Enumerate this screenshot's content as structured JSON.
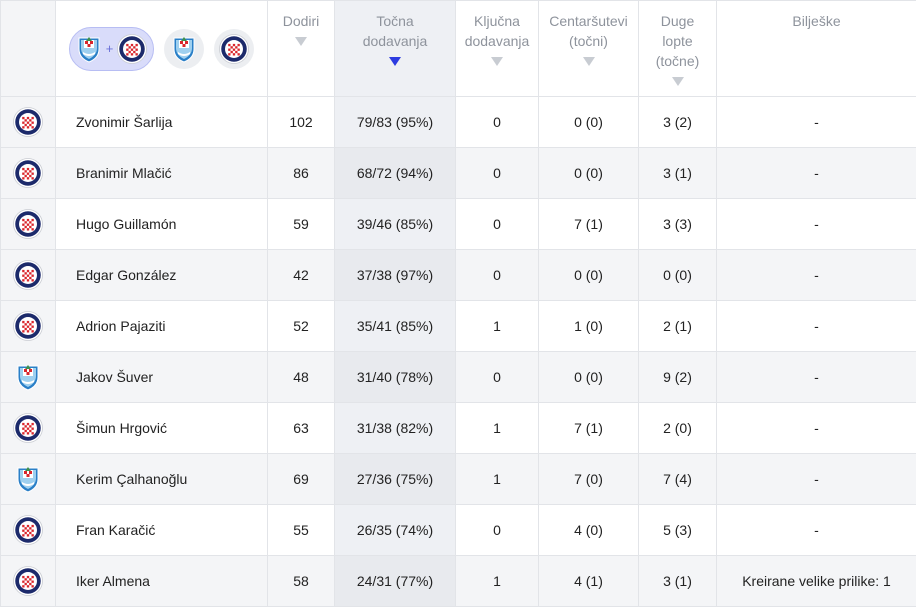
{
  "header": {
    "columns": [
      {
        "key": "touches",
        "label_lines": [
          "Dodiri"
        ]
      },
      {
        "key": "passes",
        "label_lines": [
          "Točna",
          "dodavanja"
        ]
      },
      {
        "key": "key_passes",
        "label_lines": [
          "Ključna",
          "dodavanja"
        ]
      },
      {
        "key": "crosses",
        "label_lines": [
          "Centaršutevi",
          "(točni)"
        ]
      },
      {
        "key": "long_balls",
        "label_lines": [
          "Duge",
          "lopte",
          "(točne)"
        ]
      },
      {
        "key": "notes",
        "label_lines": [
          "Bilješke"
        ]
      }
    ],
    "filter": {
      "combined_plus": "+",
      "options": [
        "both-teams",
        "team-green",
        "team-hajduk"
      ]
    }
  },
  "icons": {
    "sort": "sort-down-arrow-icon",
    "team_a": "hajduk-split-crest-icon",
    "team_b": "green-shield-crest-icon"
  },
  "colors": {
    "accent": "#2c3be0",
    "pill_bg": "#d9dcfa",
    "hajduk_red": "#d9262c",
    "hajduk_blue": "#1c2a6b",
    "green_team": "#3d8f4e",
    "green_team_blue": "#2a7fc7"
  },
  "players": [
    {
      "team": "hajduk",
      "name": "Zvonimir Šarlija",
      "touches": "102",
      "passes": "79/83 (95%)",
      "key_passes": "0",
      "crosses": "0 (0)",
      "long_balls": "3 (2)",
      "notes": "-"
    },
    {
      "team": "hajduk",
      "name": "Branimir Mlačić",
      "touches": "86",
      "passes": "68/72 (94%)",
      "key_passes": "0",
      "crosses": "0 (0)",
      "long_balls": "3 (1)",
      "notes": "-"
    },
    {
      "team": "hajduk",
      "name": "Hugo Guillamón",
      "touches": "59",
      "passes": "39/46 (85%)",
      "key_passes": "0",
      "crosses": "7 (1)",
      "long_balls": "3 (3)",
      "notes": "-"
    },
    {
      "team": "hajduk",
      "name": "Edgar González",
      "touches": "42",
      "passes": "37/38 (97%)",
      "key_passes": "0",
      "crosses": "0 (0)",
      "long_balls": "0 (0)",
      "notes": "-"
    },
    {
      "team": "hajduk",
      "name": "Adrion Pajaziti",
      "touches": "52",
      "passes": "35/41 (85%)",
      "key_passes": "1",
      "crosses": "1 (0)",
      "long_balls": "2 (1)",
      "notes": "-"
    },
    {
      "team": "green",
      "name": "Jakov Šuver",
      "touches": "48",
      "passes": "31/40 (78%)",
      "key_passes": "0",
      "crosses": "0 (0)",
      "long_balls": "9 (2)",
      "notes": "-"
    },
    {
      "team": "hajduk",
      "name": "Šimun Hrgović",
      "touches": "63",
      "passes": "31/38 (82%)",
      "key_passes": "1",
      "crosses": "7 (1)",
      "long_balls": "2 (0)",
      "notes": "-"
    },
    {
      "team": "green",
      "name": "Kerim Çalhanoğlu",
      "touches": "69",
      "passes": "27/36 (75%)",
      "key_passes": "1",
      "crosses": "7 (0)",
      "long_balls": "7 (4)",
      "notes": "-"
    },
    {
      "team": "hajduk",
      "name": "Fran Karačić",
      "touches": "55",
      "passes": "26/35 (74%)",
      "key_passes": "0",
      "crosses": "4 (0)",
      "long_balls": "5 (3)",
      "notes": "-"
    },
    {
      "team": "hajduk",
      "name": "Iker Almena",
      "touches": "58",
      "passes": "24/31 (77%)",
      "key_passes": "1",
      "crosses": "4 (1)",
      "long_balls": "3 (1)",
      "notes": "Kreirane velike prilike: 1"
    }
  ]
}
